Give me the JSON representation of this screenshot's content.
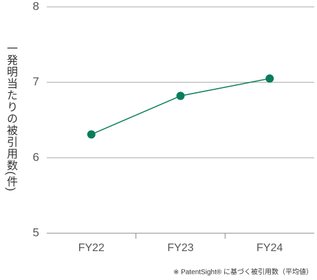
{
  "chart_data": {
    "type": "line",
    "y_label": "一発明当たりの被引用数(件)",
    "footnote": "※ PatentSight® に基づく被引用数（平均値）",
    "categories": [
      "FY22",
      "FY23",
      "FY24"
    ],
    "values": [
      6.31,
      6.82,
      7.05
    ],
    "color": "#0a7d5c",
    "ylim": [
      5,
      8
    ],
    "yticks": [
      5,
      6,
      7,
      8
    ],
    "grid": true
  }
}
